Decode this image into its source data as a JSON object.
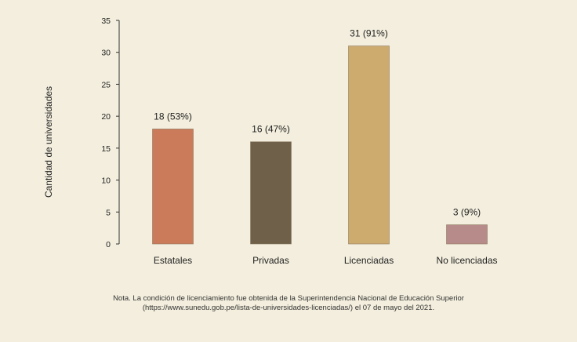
{
  "chart_data": {
    "type": "bar",
    "title": "",
    "xlabel": "",
    "ylabel": "Cantidad de universidades",
    "ylim": [
      0,
      35
    ],
    "yticks": [
      0,
      5,
      10,
      15,
      20,
      25,
      30,
      35
    ],
    "grid": false,
    "categories": [
      "Estatales",
      "Privadas",
      "Licenciadas",
      "No licenciadas"
    ],
    "values": [
      18,
      16,
      31,
      3
    ],
    "data_labels": [
      "18 (53%)",
      "16 (47%)",
      "31 (91%)",
      "3 (9%)"
    ],
    "colors": [
      "#cb7a5a",
      "#6e6049",
      "#cdab6f",
      "#b78b89"
    ]
  },
  "note": {
    "line1": "Nota. La condición de licenciamiento fue obtenida de la Superintendencia Nacional de Educación Superior",
    "line2": "(https://www.sunedu.gob.pe/lista-de-universidades-licenciadas/) el 07 de mayo del 2021."
  }
}
